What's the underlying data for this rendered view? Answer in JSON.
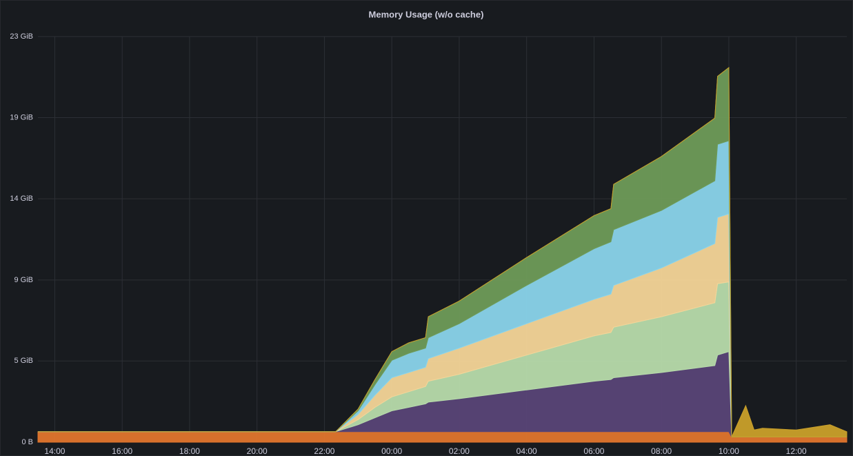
{
  "chart_data": {
    "type": "stacked-area",
    "title": "Memory Usage (w/o cache)",
    "x": [
      "13:30",
      "22:20",
      "23:00",
      "23:30",
      "00:00",
      "00:30",
      "01:00",
      "01:05",
      "02:00",
      "04:00",
      "06:00",
      "06:30",
      "06:35",
      "08:00",
      "09:35",
      "09:40",
      "10:00",
      "10:05",
      "10:30",
      "10:45",
      "11:00",
      "12:00",
      "13:00",
      "13:30"
    ],
    "xlim": [
      "13:30",
      "13:30"
    ],
    "xticks": [
      "14:00",
      "16:00",
      "18:00",
      "20:00",
      "22:00",
      "00:00",
      "02:00",
      "04:00",
      "06:00",
      "08:00",
      "10:00",
      "12:00"
    ],
    "ylim": [
      0,
      23.28
    ],
    "yticks": [
      {
        "value": 0,
        "label": "0 B"
      },
      {
        "value": 4.66,
        "label": "5 GiB"
      },
      {
        "value": 9.31,
        "label": "9 GiB"
      },
      {
        "value": 13.97,
        "label": "14 GiB"
      },
      {
        "value": 18.63,
        "label": "19 GiB"
      },
      {
        "value": 23.28,
        "label": "23 GiB"
      }
    ],
    "grid": true,
    "series": [
      {
        "color": "#e0752d",
        "values": [
          0.6,
          0.6,
          0.6,
          0.6,
          0.6,
          0.6,
          0.6,
          0.6,
          0.6,
          0.6,
          0.6,
          0.6,
          0.6,
          0.6,
          0.6,
          0.6,
          0.6,
          0.3,
          0.3,
          0.3,
          0.3,
          0.3,
          0.3,
          0.3
        ]
      },
      {
        "color": "#584477",
        "values": [
          0,
          0,
          0.4,
          0.8,
          1.2,
          1.4,
          1.6,
          1.7,
          1.9,
          2.4,
          2.9,
          3.0,
          3.1,
          3.4,
          3.8,
          4.4,
          4.6,
          0,
          0,
          0,
          0,
          0,
          0,
          0
        ]
      },
      {
        "color": "#b7dbab",
        "values": [
          0,
          0,
          0.3,
          0.6,
          0.8,
          0.9,
          1.0,
          1.2,
          1.4,
          2.0,
          2.6,
          2.7,
          2.9,
          3.2,
          3.6,
          4.1,
          4.0,
          0,
          0,
          0,
          0,
          0,
          0,
          0
        ]
      },
      {
        "color": "#f4d598",
        "values": [
          0,
          0,
          0.3,
          0.7,
          1.1,
          1.1,
          1.1,
          1.3,
          1.5,
          1.8,
          2.1,
          2.2,
          2.4,
          2.8,
          3.4,
          3.8,
          3.9,
          0,
          0,
          0,
          0,
          0,
          0,
          0
        ]
      },
      {
        "color": "#8ad4eb",
        "values": [
          0,
          0,
          0.2,
          0.6,
          1.0,
          1.1,
          1.1,
          1.2,
          1.4,
          2.2,
          2.9,
          3.0,
          3.2,
          3.3,
          3.6,
          4.2,
          4.2,
          0,
          0,
          0,
          0,
          0,
          0,
          0
        ]
      },
      {
        "color": "#6e9b58",
        "values": [
          0,
          0,
          0.1,
          0.3,
          0.5,
          0.6,
          0.6,
          1.2,
          1.3,
          1.6,
          1.9,
          1.9,
          2.6,
          3.1,
          3.6,
          3.9,
          4.2,
          0,
          0,
          0,
          0,
          0,
          0,
          0
        ]
      },
      {
        "color": "#c9a02a",
        "values": [
          0,
          0,
          0,
          0,
          0,
          0,
          0,
          0,
          0,
          0,
          0,
          0,
          0,
          0,
          0,
          0,
          0,
          0,
          1.8,
          0.4,
          0.5,
          0.4,
          0.7,
          0.3
        ]
      }
    ]
  }
}
